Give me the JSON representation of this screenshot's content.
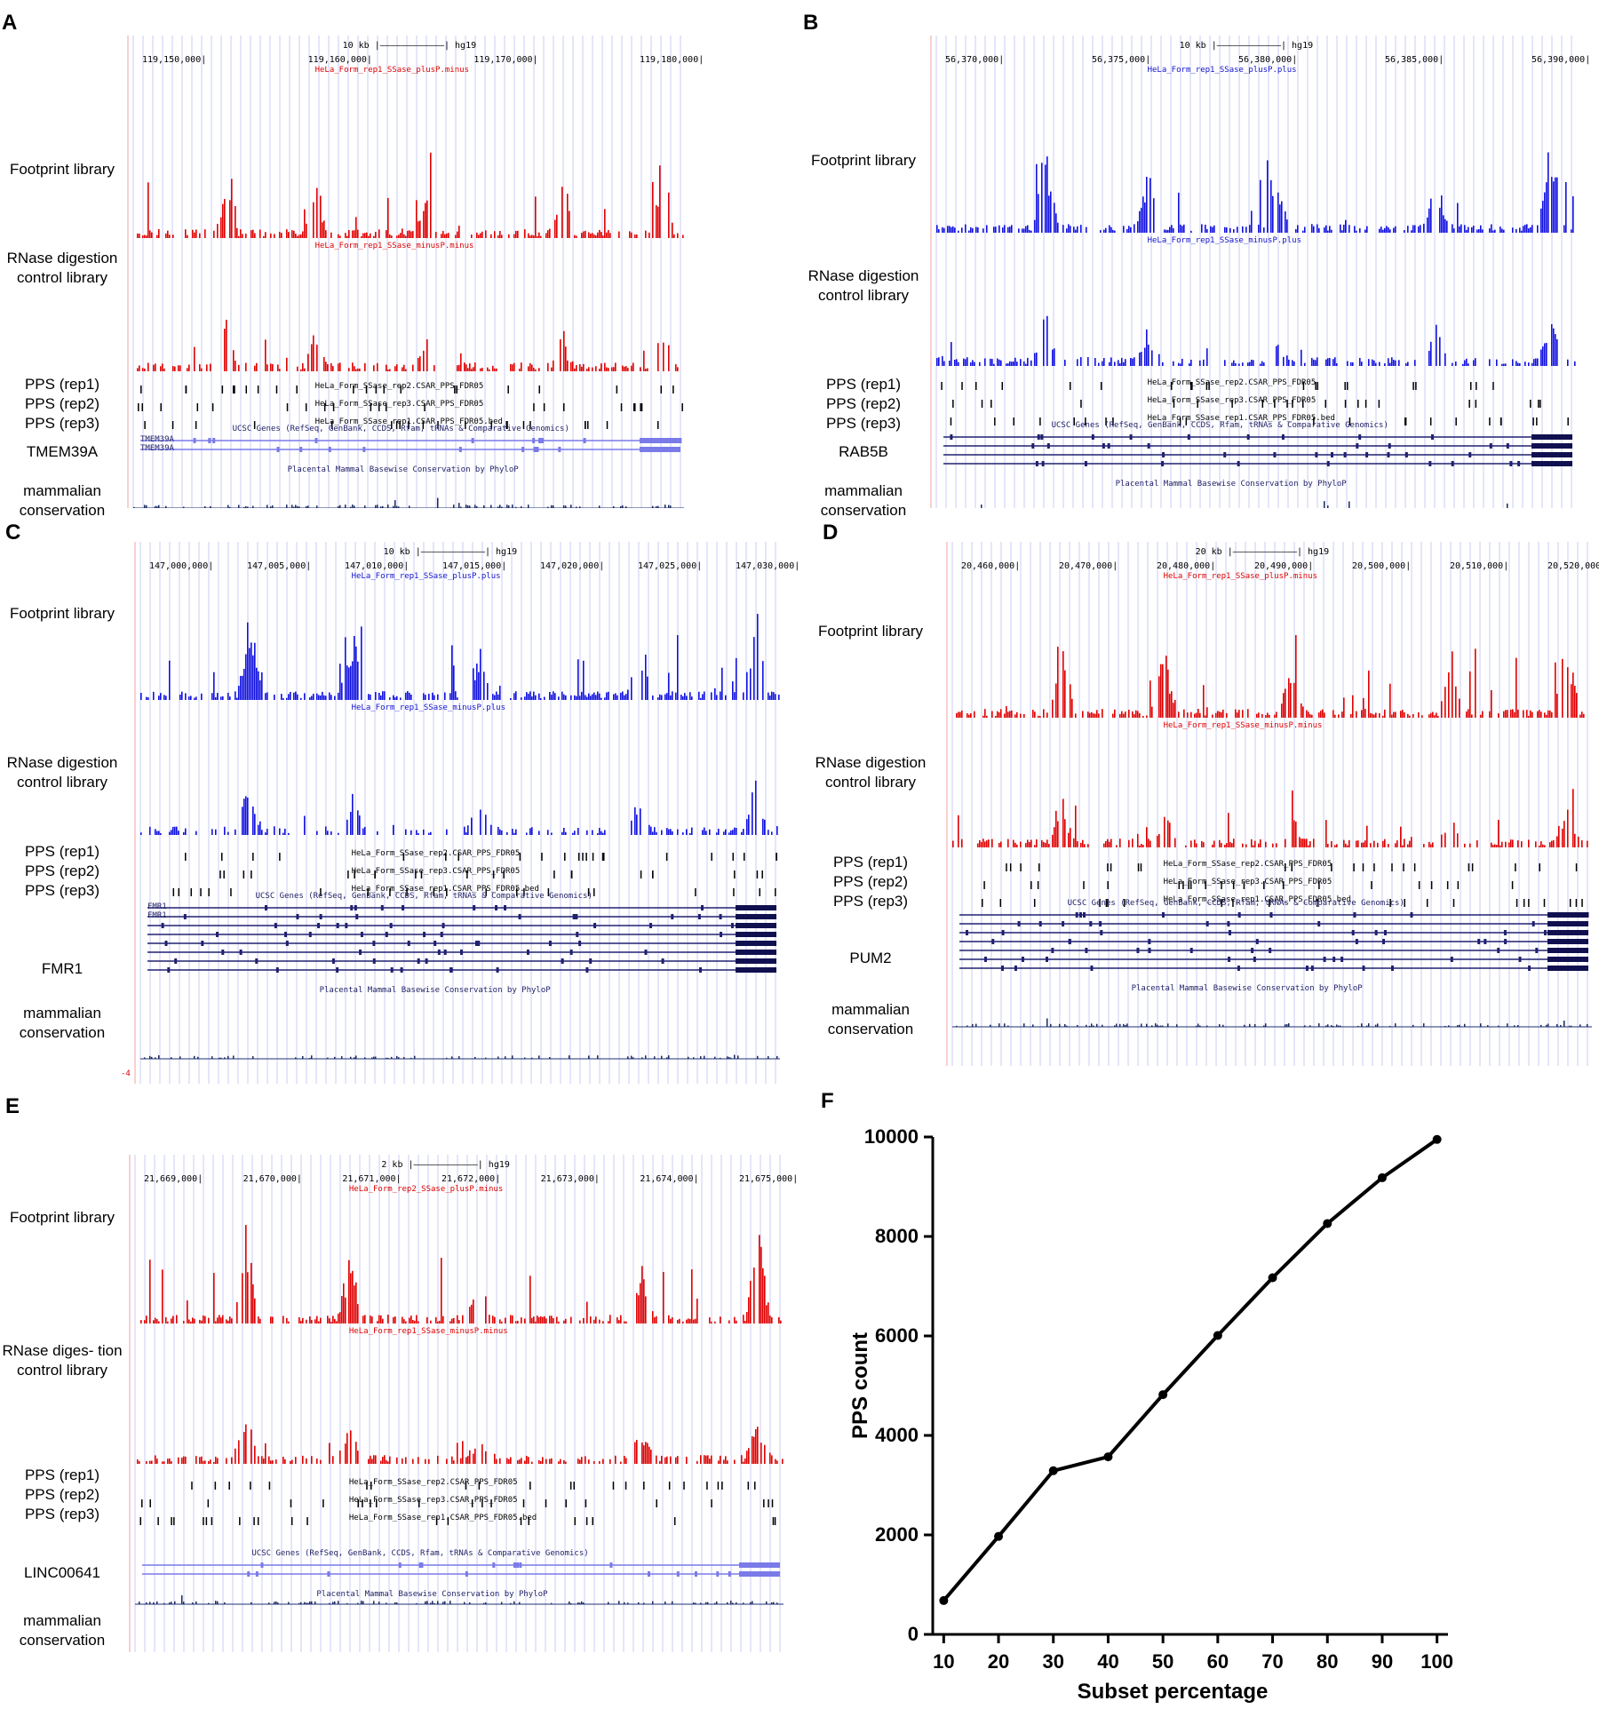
{
  "panels": [
    {
      "letter": "A",
      "color": "#e00000",
      "labels": {
        "footprint": "Footprint library",
        "rnase": "RNase digestion control library",
        "pps": [
          "PPS (rep1)",
          "PPS (rep2)",
          "PPS (rep3)"
        ],
        "gene": "TMEM39A",
        "cons": "mammalian conservation"
      },
      "scale": "10 kb",
      "assembly": "hg19",
      "coords": [
        "119,150,000",
        "119,160,000",
        "119,170,000",
        "119,180,000"
      ],
      "tracks": {
        "footprint": "HeLa_Form_rep1_SSase_plusP.minus",
        "rnase": "HeLa_Form_rep1_SSase_minusP.minus",
        "pps": [
          "HeLa_Form_SSase_rep2.CSAR_PPS_FDR05",
          "HeLa_Form_SSase_rep3.CSAR_PPS_FDR05",
          "HeLa_Form_SSase_rep1.CSAR_PPS_FDR05.bed"
        ],
        "genes": "UCSC Genes (RefSeq, GenBank, CCDS, Rfam, tRNAs & Comparative Genomics)",
        "cons": "Placental Mammal Basewise Conservation by PhyloP",
        "genenames": [
          "TMEM39A",
          "TMEM39A"
        ]
      }
    },
    {
      "letter": "B",
      "color": "#1010e0",
      "labels": {
        "footprint": "Footprint library",
        "rnase": "RNase digestion control library",
        "pps": [
          "PPS (rep1)",
          "PPS (rep2)",
          "PPS (rep3)"
        ],
        "gene": "RAB5B",
        "cons": "mammalian conservation"
      },
      "scale": "10 kb",
      "assembly": "hg19",
      "coords": [
        "56,370,000",
        "56,375,000",
        "56,380,000",
        "56,385,000",
        "56,390,000"
      ],
      "tracks": {
        "footprint": "HeLa_Form_rep1_SSase_plusP.plus",
        "rnase": "HeLa_Form_rep1_SSase_minusP.plus",
        "pps": [
          "HeLa_Form_SSase_rep2.CSAR_PPS_FDR05",
          "HeLa_Form_SSase_rep3.CSAR_PPS_FDR05",
          "HeLa_Form_SSase_rep1.CSAR_PPS_FDR05.bed"
        ],
        "genes": "UCSC Genes (RefSeq, GenBank, CCDS, Rfam, tRNAs & Comparative Genomics)",
        "cons": "Placental Mammal Basewise Conservation by PhyloP",
        "genenames": []
      }
    },
    {
      "letter": "C",
      "color": "#1010e0",
      "labels": {
        "footprint": "Footprint library",
        "rnase": "RNase digestion control library",
        "pps": [
          "PPS (rep1)",
          "PPS (rep2)",
          "PPS (rep3)"
        ],
        "gene": "FMR1",
        "cons": "mammalian conservation"
      },
      "scale": "10 kb",
      "assembly": "hg19",
      "coords": [
        "147,000,000",
        "147,005,000",
        "147,010,000",
        "147,015,000",
        "147,020,000",
        "147,025,000",
        "147,030,000"
      ],
      "tracks": {
        "footprint": "HeLa_Form_rep1_SSase_plusP.plus",
        "rnase": "HeLa_Form_rep1_SSase_minusP.plus",
        "pps": [
          "HeLa_Form_SSase_rep2.CSAR_PPS_FDR05",
          "HeLa_Form_SSase_rep3.CSAR_PPS_FDR05",
          "HeLa_Form_SSase_rep1.CSAR_PPS_FDR05.bed"
        ],
        "genes": "UCSC Genes (RefSeq, GenBank, CCDS, Rfam, tRNAs & Comparative Genomics)",
        "cons": "Placental Mammal Basewise Conservation by PhyloP",
        "genenames": [
          "FMR1",
          "FMR1"
        ],
        "extra": "-4"
      }
    },
    {
      "letter": "D",
      "color": "#e00000",
      "labels": {
        "footprint": "Footprint library",
        "rnase": "RNase digestion control library",
        "pps": [
          "PPS (rep1)",
          "PPS (rep2)",
          "PPS (rep3)"
        ],
        "gene": "PUM2",
        "cons": "mammalian conservation"
      },
      "scale": "20 kb",
      "assembly": "hg19",
      "coords": [
        "20,460,000",
        "20,470,000",
        "20,480,000",
        "20,490,000",
        "20,500,000",
        "20,510,000",
        "20,520,000"
      ],
      "tracks": {
        "footprint": "HeLa_Form_rep1_SSase_plusP.minus",
        "rnase": "HeLa_Form_rep1_SSase_minusP.minus",
        "pps": [
          "HeLa_Form_SSase_rep2.CSAR_PPS_FDR05",
          "HeLa_Form_SSase_rep3.CSAR_PPS_FDR05",
          "HeLa_Form_SSase_rep1.CSAR_PPS_FDR05.bed"
        ],
        "genes": "UCSC Genes (RefSeq, GenBank, CCDS, Rfam, tRNAs & Comparative Genomics)",
        "cons": "Placental Mammal Basewise Conservation by PhyloP",
        "genenames": []
      }
    },
    {
      "letter": "E",
      "color": "#e00000",
      "labels": {
        "footprint": "Footprint library",
        "rnase": "RNase diges- tion control library",
        "pps": [
          "PPS (rep1)",
          "PPS (rep2)",
          "PPS (rep3)"
        ],
        "gene": "LINC00641",
        "cons": "mammalian conservation"
      },
      "scale": "2 kb",
      "assembly": "hg19",
      "coords": [
        "21,669,000",
        "21,670,000",
        "21,671,000",
        "21,672,000",
        "21,673,000",
        "21,674,000",
        "21,675,000"
      ],
      "tracks": {
        "footprint": "HeLa_Form_rep2_SSase_plusP.minus",
        "rnase": "HeLa_Form_rep1_SSase_minusP.minus",
        "pps": [
          "HeLa_Form_SSase_rep2.CSAR_PPS_FDR05",
          "HeLa_Form_SSase_rep3.CSAR_PPS_FDR05",
          "HeLa_Form_SSase_rep1.CSAR_PPS_FDR05.bed"
        ],
        "genes": "UCSC Genes (RefSeq, GenBank, CCDS, Rfam, tRNAs & Comparative Genomics)",
        "cons": "Placental Mammal Basewise Conservation by PhyloP",
        "genenames": []
      }
    }
  ],
  "panelF": {
    "letter": "F"
  },
  "chart_data": {
    "type": "line",
    "x": [
      10,
      20,
      30,
      40,
      50,
      60,
      70,
      80,
      90,
      100
    ],
    "values": [
      680,
      1970,
      3290,
      3570,
      4820,
      6010,
      7170,
      8260,
      9180,
      9950
    ],
    "xlabel": "Subset percentage",
    "ylabel": "PPS count",
    "xticks": [
      "10",
      "20",
      "30",
      "40",
      "50",
      "60",
      "70",
      "80",
      "90",
      "100"
    ],
    "yticks": [
      "0",
      "2000",
      "4000",
      "6000",
      "8000",
      "10000"
    ],
    "xlim": [
      8,
      102
    ],
    "ylim": [
      0,
      10000
    ],
    "grid": false,
    "color": "#000000"
  }
}
